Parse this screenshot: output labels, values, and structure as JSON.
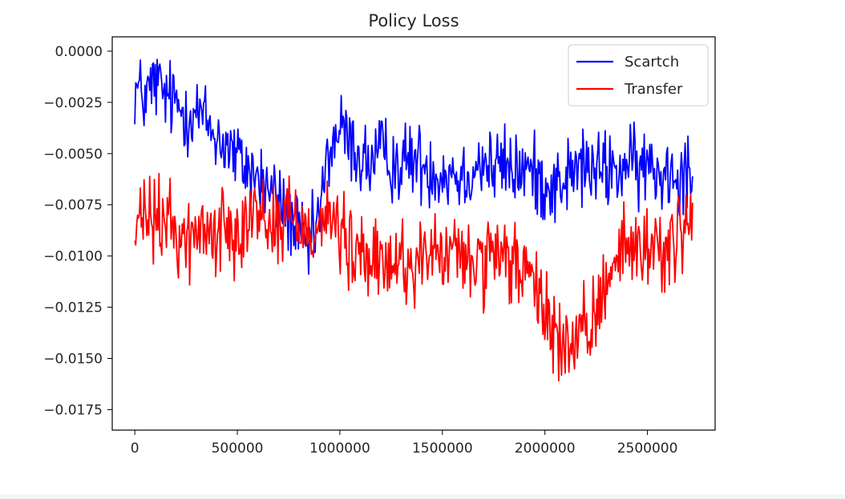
{
  "chart_data": {
    "type": "line",
    "title": "Policy Loss",
    "xlabel": "",
    "ylabel": "",
    "xlim": [
      -110000,
      2830000
    ],
    "ylim": [
      -0.0185,
      0.0007
    ],
    "x_ticks": [
      0,
      500000,
      1000000,
      1500000,
      2000000,
      2500000
    ],
    "x_tick_labels": [
      "0",
      "500000",
      "1000000",
      "1500000",
      "2000000",
      "2500000"
    ],
    "y_ticks": [
      0.0,
      -0.0025,
      -0.005,
      -0.0075,
      -0.01,
      -0.0125,
      -0.015,
      -0.0175
    ],
    "y_tick_labels": [
      "0.0000",
      "−0.0025",
      "−0.0050",
      "−0.0075",
      "−0.0100",
      "−0.0125",
      "−0.0150",
      "−0.0175"
    ],
    "grid": false,
    "legend_position": "top-right",
    "series": [
      {
        "name": "Scartch",
        "color": "#0000ff",
        "x": [
          0,
          50000,
          100000,
          150000,
          200000,
          250000,
          300000,
          350000,
          400000,
          450000,
          500000,
          550000,
          600000,
          650000,
          700000,
          750000,
          800000,
          850000,
          900000,
          950000,
          1000000,
          1050000,
          1100000,
          1150000,
          1200000,
          1250000,
          1300000,
          1350000,
          1400000,
          1450000,
          1500000,
          1550000,
          1600000,
          1650000,
          1700000,
          1750000,
          1800000,
          1850000,
          1900000,
          1950000,
          2000000,
          2050000,
          2100000,
          2150000,
          2200000,
          2250000,
          2300000,
          2350000,
          2400000,
          2450000,
          2500000,
          2550000,
          2600000,
          2650000,
          2700000,
          2720000
        ],
        "y": [
          -0.0018,
          -0.0023,
          -0.0015,
          -0.0022,
          -0.0026,
          -0.003,
          -0.0029,
          -0.0035,
          -0.0042,
          -0.0046,
          -0.0053,
          -0.0057,
          -0.0062,
          -0.0067,
          -0.0073,
          -0.008,
          -0.009,
          -0.0098,
          -0.008,
          -0.0048,
          -0.0038,
          -0.0045,
          -0.0052,
          -0.0055,
          -0.005,
          -0.0053,
          -0.0056,
          -0.0052,
          -0.0055,
          -0.0057,
          -0.006,
          -0.0058,
          -0.0062,
          -0.0056,
          -0.0054,
          -0.0058,
          -0.0055,
          -0.0059,
          -0.0057,
          -0.0061,
          -0.0064,
          -0.0066,
          -0.0062,
          -0.0058,
          -0.0056,
          -0.006,
          -0.0057,
          -0.0059,
          -0.0055,
          -0.0058,
          -0.0056,
          -0.006,
          -0.0057,
          -0.0059,
          -0.0056,
          -0.006
        ],
        "noise": 0.0012
      },
      {
        "name": "Transfer",
        "color": "#ff0000",
        "x": [
          0,
          50000,
          100000,
          150000,
          200000,
          250000,
          300000,
          350000,
          400000,
          450000,
          500000,
          550000,
          600000,
          650000,
          700000,
          750000,
          800000,
          850000,
          900000,
          950000,
          1000000,
          1050000,
          1100000,
          1150000,
          1200000,
          1250000,
          1300000,
          1350000,
          1400000,
          1450000,
          1500000,
          1550000,
          1600000,
          1650000,
          1700000,
          1750000,
          1800000,
          1850000,
          1900000,
          1950000,
          2000000,
          2050000,
          2100000,
          2150000,
          2200000,
          2250000,
          2300000,
          2350000,
          2400000,
          2450000,
          2500000,
          2550000,
          2600000,
          2650000,
          2700000,
          2720000
        ],
        "y": [
          -0.009,
          -0.008,
          -0.0085,
          -0.0082,
          -0.0088,
          -0.0092,
          -0.009,
          -0.0087,
          -0.0089,
          -0.0086,
          -0.0084,
          -0.0081,
          -0.0079,
          -0.0082,
          -0.0085,
          -0.008,
          -0.0083,
          -0.0087,
          -0.0082,
          -0.0081,
          -0.0088,
          -0.01,
          -0.0098,
          -0.0104,
          -0.0106,
          -0.0103,
          -0.0102,
          -0.0105,
          -0.0099,
          -0.0101,
          -0.01,
          -0.0098,
          -0.0103,
          -0.0101,
          -0.0104,
          -0.0105,
          -0.0102,
          -0.0103,
          -0.0108,
          -0.0118,
          -0.0126,
          -0.0138,
          -0.0145,
          -0.0142,
          -0.014,
          -0.013,
          -0.0108,
          -0.0098,
          -0.0095,
          -0.0099,
          -0.0093,
          -0.0097,
          -0.0094,
          -0.0092,
          -0.0082,
          -0.008
        ],
        "noise": 0.0013
      }
    ]
  }
}
